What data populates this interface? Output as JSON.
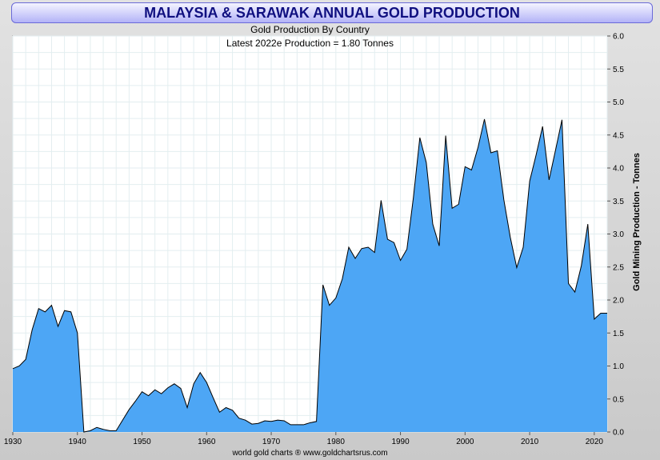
{
  "chart_data": {
    "type": "area",
    "title": "MALAYSIA & SARAWAK ANNUAL GOLD PRODUCTION",
    "subtitle": "Gold Production By Country",
    "annotation": "Latest 2022e  Production = 1.80 Tonnes",
    "ylabel": "Gold Mining Production - Tonnes",
    "footer": "world gold charts ® www.goldchartsrus.com",
    "xlim": [
      1930,
      2022
    ],
    "ylim": [
      0,
      6
    ],
    "x_ticks": [
      1930,
      1940,
      1950,
      1960,
      1970,
      1980,
      1990,
      2000,
      2010,
      2020
    ],
    "y_ticks": [
      "0.0",
      "0.5",
      "1.0",
      "1.5",
      "2.0",
      "2.5",
      "3.0",
      "3.5",
      "4.0",
      "4.5",
      "5.0",
      "5.5",
      "6.0"
    ],
    "grid": true,
    "fill_color": "#4da6f5",
    "line_color": "#000000",
    "x": [
      1930,
      1931,
      1932,
      1933,
      1934,
      1935,
      1936,
      1937,
      1938,
      1939,
      1940,
      1941,
      1942,
      1943,
      1944,
      1945,
      1946,
      1947,
      1948,
      1949,
      1950,
      1951,
      1952,
      1953,
      1954,
      1955,
      1956,
      1957,
      1958,
      1959,
      1960,
      1961,
      1962,
      1963,
      1964,
      1965,
      1966,
      1967,
      1968,
      1969,
      1970,
      1971,
      1972,
      1973,
      1974,
      1975,
      1976,
      1977,
      1978,
      1979,
      1980,
      1981,
      1982,
      1983,
      1984,
      1985,
      1986,
      1987,
      1988,
      1989,
      1990,
      1991,
      1992,
      1993,
      1994,
      1995,
      1996,
      1997,
      1998,
      1999,
      2000,
      2001,
      2002,
      2003,
      2004,
      2005,
      2006,
      2007,
      2008,
      2009,
      2010,
      2011,
      2012,
      2013,
      2014,
      2015,
      2016,
      2017,
      2018,
      2019,
      2020,
      2021,
      2022
    ],
    "values": [
      0.96,
      1.0,
      1.1,
      1.55,
      1.87,
      1.82,
      1.92,
      1.6,
      1.84,
      1.82,
      1.5,
      0.0,
      0.02,
      0.07,
      0.04,
      0.02,
      0.02,
      0.18,
      0.34,
      0.47,
      0.61,
      0.55,
      0.64,
      0.58,
      0.67,
      0.73,
      0.66,
      0.37,
      0.73,
      0.9,
      0.75,
      0.52,
      0.3,
      0.37,
      0.33,
      0.21,
      0.18,
      0.12,
      0.13,
      0.17,
      0.16,
      0.18,
      0.17,
      0.11,
      0.11,
      0.11,
      0.14,
      0.16,
      2.23,
      1.92,
      2.03,
      2.32,
      2.8,
      2.63,
      2.78,
      2.8,
      2.72,
      3.51,
      2.92,
      2.87,
      2.6,
      2.77,
      3.55,
      4.46,
      4.08,
      3.15,
      2.82,
      4.49,
      3.39,
      3.45,
      4.02,
      3.97,
      4.31,
      4.74,
      4.23,
      4.26,
      3.52,
      2.95,
      2.49,
      2.8,
      3.8,
      4.2,
      4.63,
      3.82,
      4.27,
      4.73,
      2.25,
      2.12,
      2.52,
      3.15,
      1.71,
      1.8,
      1.8
    ]
  }
}
